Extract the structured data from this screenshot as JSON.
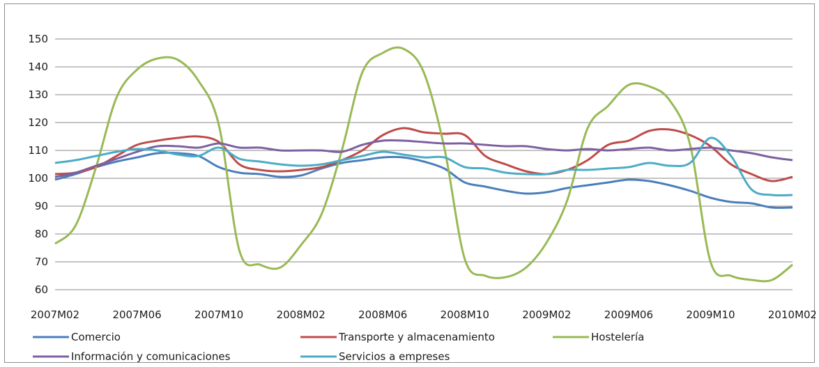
{
  "chart_data": {
    "type": "line",
    "title": "",
    "xlabel": "",
    "ylabel": "",
    "ylim": [
      60,
      150
    ],
    "yticks": [
      60,
      70,
      80,
      90,
      100,
      110,
      120,
      130,
      140,
      150
    ],
    "grid": true,
    "legend_position": "bottom",
    "x": [
      "2007M02",
      "2007M03",
      "2007M04",
      "2007M05",
      "2007M06",
      "2007M07",
      "2007M08",
      "2007M09",
      "2007M10",
      "2007M11",
      "2007M12",
      "2008M01",
      "2008M02",
      "2008M03",
      "2008M04",
      "2008M05",
      "2008M06",
      "2008M07",
      "2008M08",
      "2008M09",
      "2008M10",
      "2008M11",
      "2008M12",
      "2009M01",
      "2009M02",
      "2009M03",
      "2009M04",
      "2009M05",
      "2009M06",
      "2009M07",
      "2009M08",
      "2009M09",
      "2009M10",
      "2009M11",
      "2009M12",
      "2010M01",
      "2010M02"
    ],
    "xtick_labels": [
      "2007M02",
      "2007M06",
      "2007M10",
      "2008M02",
      "2008M06",
      "2008M10",
      "2009M02",
      "2009M06",
      "2009M10",
      "2010M02"
    ],
    "series": [
      {
        "name": "Comercio",
        "color": "#4a7ebb",
        "values": [
          99.5,
          101.5,
          104,
          106,
          107.5,
          109,
          109,
          108,
          104,
          102,
          101.5,
          100.5,
          101,
          103.5,
          105.5,
          106.5,
          107.5,
          107.5,
          106,
          103.5,
          98.5,
          97,
          95.5,
          94.5,
          95,
          96.5,
          97.5,
          98.5,
          99.5,
          99,
          97.5,
          95.5,
          93,
          91.5,
          91,
          89.5,
          89.5
        ]
      },
      {
        "name": "Transporte y almacenamiento",
        "color": "#be4b48",
        "values": [
          101.5,
          102,
          104,
          108,
          112,
          113.5,
          114.5,
          115,
          113,
          105,
          103,
          102.5,
          103,
          104,
          106.5,
          110,
          115.5,
          118,
          116.5,
          116,
          115.5,
          108,
          105,
          102.5,
          101.5,
          103,
          106.5,
          112,
          113.5,
          117,
          117.5,
          115.5,
          111.5,
          105,
          101.5,
          99,
          100.5
        ]
      },
      {
        "name": "Hostelería",
        "color": "#98b954",
        "values": [
          76.5,
          83,
          104,
          129,
          139,
          143,
          142.5,
          135,
          119,
          74,
          69,
          68,
          76,
          87,
          110,
          138,
          145,
          146.5,
          138,
          111,
          71,
          65,
          64.5,
          68,
          77,
          92,
          118,
          126,
          133.5,
          133,
          128,
          112,
          70,
          65,
          63.5,
          63.5,
          69
        ]
      },
      {
        "name": "Información y comunicaciones",
        "color": "#7d60a0",
        "values": [
          100.5,
          102,
          104.5,
          107,
          109.5,
          111.5,
          111.5,
          111,
          112.5,
          111,
          111,
          110,
          110,
          110,
          109.5,
          112,
          113.5,
          113.5,
          113,
          112.5,
          112.5,
          112,
          111.5,
          111.5,
          110.5,
          110,
          110.5,
          110,
          110.5,
          111,
          110,
          110.5,
          111,
          110,
          109,
          107.5,
          106.5
        ]
      },
      {
        "name": "Servicios a empreses",
        "color": "#4bacc6",
        "values": [
          105.5,
          106.5,
          108,
          109.5,
          110.5,
          110,
          108.5,
          108,
          111,
          107,
          106,
          105,
          104.5,
          105,
          106.5,
          108,
          109.5,
          108.5,
          107.5,
          107.5,
          104,
          103.5,
          102,
          101.5,
          101.5,
          103,
          103,
          103.5,
          104,
          105.5,
          104.5,
          105.5,
          114.5,
          108,
          96,
          94,
          94
        ]
      }
    ]
  }
}
